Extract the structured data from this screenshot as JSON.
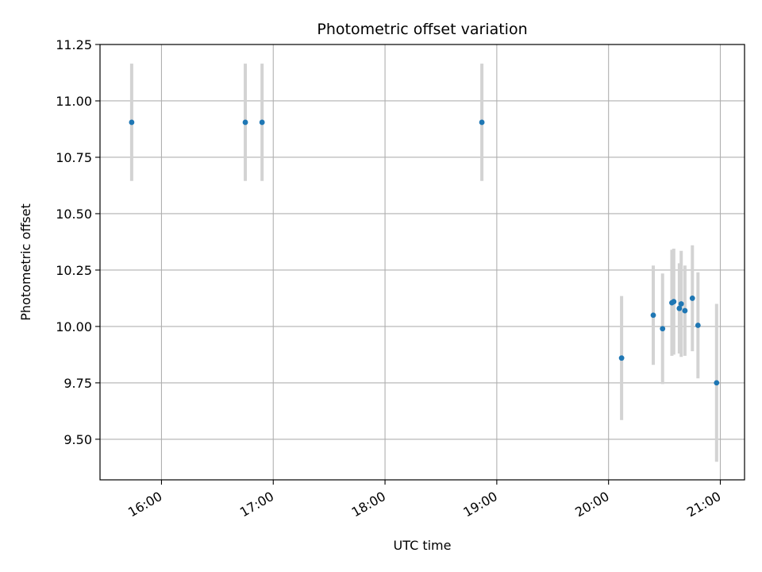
{
  "chart_data": {
    "type": "scatter",
    "title": "Photometric offset variation",
    "xlabel": "UTC time",
    "ylabel": "Photometric offset",
    "x_unit": "UTC time (HH:MM)",
    "xlim": [
      "15:27",
      "21:13"
    ],
    "ylim": [
      9.32,
      11.25
    ],
    "x_ticks": [
      "16:00",
      "17:00",
      "18:00",
      "19:00",
      "20:00",
      "21:00"
    ],
    "y_ticks": [
      "9.50",
      "9.75",
      "10.00",
      "10.25",
      "10.50",
      "10.75",
      "11.00",
      "11.25"
    ],
    "grid": true,
    "point_color": "#1f77b4",
    "errorbar_color": "#d3d3d3",
    "points": [
      {
        "x": "15:44",
        "y": 10.905,
        "err": 0.26
      },
      {
        "x": "16:45",
        "y": 10.905,
        "err": 0.26
      },
      {
        "x": "16:54",
        "y": 10.905,
        "err": 0.26
      },
      {
        "x": "18:52",
        "y": 10.905,
        "err": 0.26
      },
      {
        "x": "20:07",
        "y": 9.86,
        "err": 0.275
      },
      {
        "x": "20:24",
        "y": 10.05,
        "err": 0.22
      },
      {
        "x": "20:29",
        "y": 9.99,
        "err": 0.245
      },
      {
        "x": "20:34",
        "y": 10.105,
        "err": 0.235
      },
      {
        "x": "20:35",
        "y": 10.11,
        "err": 0.235
      },
      {
        "x": "20:38",
        "y": 10.08,
        "err": 0.2
      },
      {
        "x": "20:39",
        "y": 10.1,
        "err": 0.235
      },
      {
        "x": "20:41",
        "y": 10.07,
        "err": 0.2
      },
      {
        "x": "20:45",
        "y": 10.125,
        "err": 0.235
      },
      {
        "x": "20:48",
        "y": 10.005,
        "err": 0.235
      },
      {
        "x": "20:58",
        "y": 9.75,
        "err": 0.35
      }
    ]
  }
}
